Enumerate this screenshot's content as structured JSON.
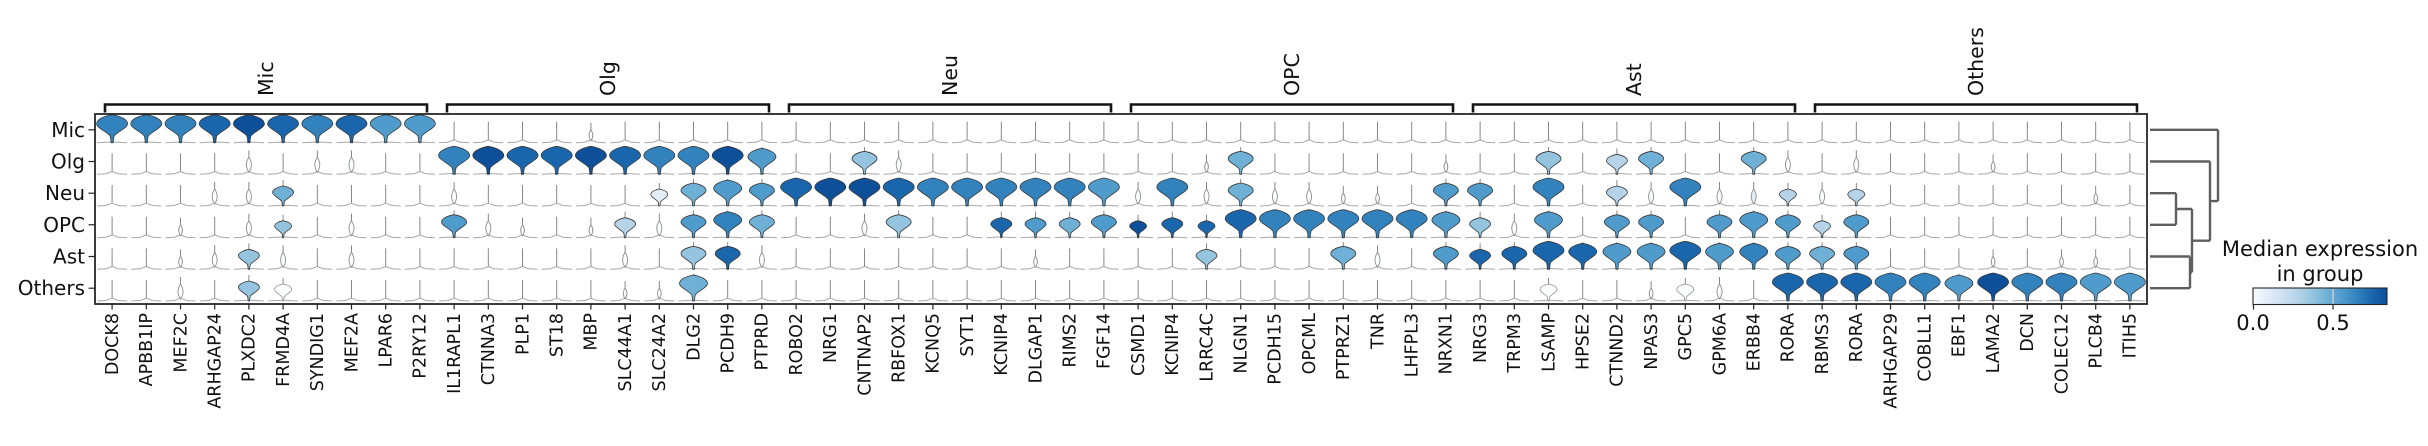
{
  "chart_data": {
    "type": "stacked_violin",
    "description": "Stacked violin plot of marker gene expression per cell-type group, with column group brackets, row dendrogram and median-expression colorbar",
    "rows": [
      "Mic",
      "Olg",
      "Neu",
      "OPC",
      "Ast",
      "Others"
    ],
    "groups": [
      {
        "label": "Mic",
        "genes": [
          "DOCK8",
          "APBB1IP",
          "MEF2C",
          "ARHGAP24",
          "PLXDC2",
          "FRMD4A",
          "SYNDIG1",
          "MEF2A",
          "LPAR6",
          "P2RY12"
        ]
      },
      {
        "label": "Olg",
        "genes": [
          "IL1RAPL1",
          "CTNNA3",
          "PLP1",
          "ST18",
          "MBP",
          "SLC44A1",
          "SLC24A2",
          "DLG2",
          "PCDH9",
          "PTPRD"
        ]
      },
      {
        "label": "Neu",
        "genes": [
          "ROBO2",
          "NRG1",
          "CNTNAP2",
          "RBFOX1",
          "KCNQ5",
          "SYT1",
          "KCNIP4",
          "DLGAP1",
          "RIMS2",
          "FGF14"
        ]
      },
      {
        "label": "OPC",
        "genes": [
          "CSMD1",
          "KCNIP4",
          "LRRC4C",
          "NLGN1",
          "PCDH15",
          "OPCML",
          "PTPRZ1",
          "TNR",
          "LHFPL3",
          "NRXN1"
        ]
      },
      {
        "label": "Ast",
        "genes": [
          "NRG3",
          "TRPM3",
          "LSAMP",
          "HPSE2",
          "CTNND2",
          "NPAS3",
          "GPC5",
          "GPM6A",
          "ERBB4",
          "RORA"
        ]
      },
      {
        "label": "Others",
        "genes": [
          "RBMS3",
          "RORA",
          "ARHGAP29",
          "COBLL1",
          "EBF1",
          "LAMA2",
          "DCN",
          "COLEC12",
          "PLCB4",
          "ITIH5"
        ]
      }
    ],
    "cell_encoding": {
      "format": "two digits per gene column: first digit = violin size 0-9 (0 = collapsed flat violin with whisker), second digit = fill color index 0-9 into Blues palette",
      "color_to_value": "median expression approx = color_index * 0.09 (colorbar spans 0.0 to about 0.8)"
    },
    "cells": [
      "878787888988878886860000000020000000000000000000000000000000000000000000000000000000000000000000000000000000000000000000",
      "000000003000303000008789888889888787897600006430000000000000000020650000000000200000640053650000653000300000002000000000",
      "000000303055000000003000000000004165766688898988878787878786308730653030202000666600870053308730314330430000000000002000",
      "000020003044003000006630200020533066776500003064000058565566495848888787878787765430760066660066766643660000000000000000",
      "000020305430003000000000000000300064683000000000000000200000000054000000653000665868887876768876776665660000002000202000",
      "000030005440000000000000000000202075000000000000000000000000000000000000000000000000400000204030008888888787768987878686"
    ],
    "legend": {
      "title_line1": "Median expression",
      "title_line2": "in group",
      "tick_labels": [
        "0.0",
        "0.5"
      ],
      "colormap": "Blues"
    },
    "dendrogram": {
      "leaf_order": [
        "Mic",
        "Olg",
        "Neu",
        "OPC",
        "Ast",
        "Others"
      ],
      "topology": "(Mic,(Olg,((Neu,OPC),(Ast,Others))))"
    },
    "colors": {
      "palette": [
        "#f7fbff",
        "#e2edf8",
        "#cfe1f2",
        "#b5d4e9",
        "#94c4df",
        "#6fb0d7",
        "#4f9bcb",
        "#3282be",
        "#1a66ac",
        "#0d4f99"
      ],
      "white_violin_fill": "#fbfdff",
      "violin_stroke": "#3a3a3a",
      "outline_violin_stroke": "#8f8f8f",
      "baseline_stroke": "#a8a8a8",
      "whisker_stroke": "#7a7a7a",
      "axis_stroke": "#262626",
      "bracket_stroke": "#141414",
      "dendrogram_stroke": "#5f5f5f",
      "text_color": "#111111"
    }
  }
}
